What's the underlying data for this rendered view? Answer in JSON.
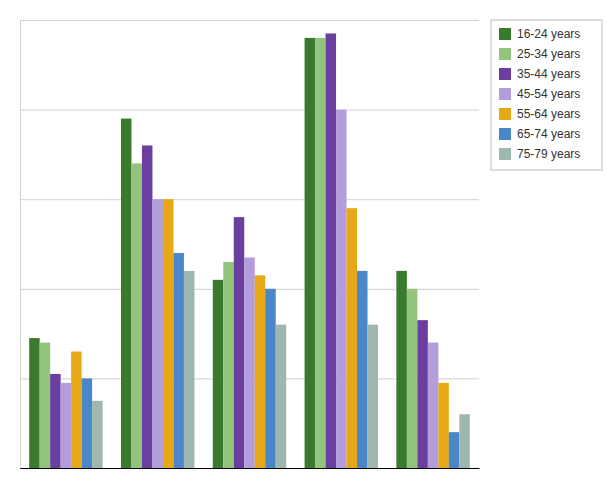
{
  "chart_data": {
    "type": "bar",
    "categories": [
      null,
      null,
      null,
      null,
      null
    ],
    "series": [
      {
        "name": "16-24 years",
        "color": "#3a7a2e",
        "values": [
          29,
          78,
          42,
          96,
          44
        ]
      },
      {
        "name": "25-34 years",
        "color": "#93c47d",
        "values": [
          28,
          68,
          46,
          96,
          40
        ]
      },
      {
        "name": "35-44 years",
        "color": "#6b3fa0",
        "values": [
          21,
          72,
          56,
          97,
          33
        ]
      },
      {
        "name": "45-54 years",
        "color": "#b39ddb",
        "values": [
          19,
          60,
          47,
          80,
          28
        ]
      },
      {
        "name": "55-64 years",
        "color": "#e6a817",
        "values": [
          26,
          60,
          43,
          58,
          19
        ]
      },
      {
        "name": "65-74 years",
        "color": "#4a86c8",
        "values": [
          20,
          48,
          40,
          44,
          8
        ]
      },
      {
        "name": "75-79 years",
        "color": "#9eb8b0",
        "values": [
          15,
          44,
          32,
          32,
          12
        ]
      }
    ],
    "ylim": [
      0,
      100
    ],
    "yticks": [
      0,
      20,
      40,
      60,
      80,
      100
    ],
    "grid": true,
    "legend": "upper right",
    "tick_labels": false
  }
}
